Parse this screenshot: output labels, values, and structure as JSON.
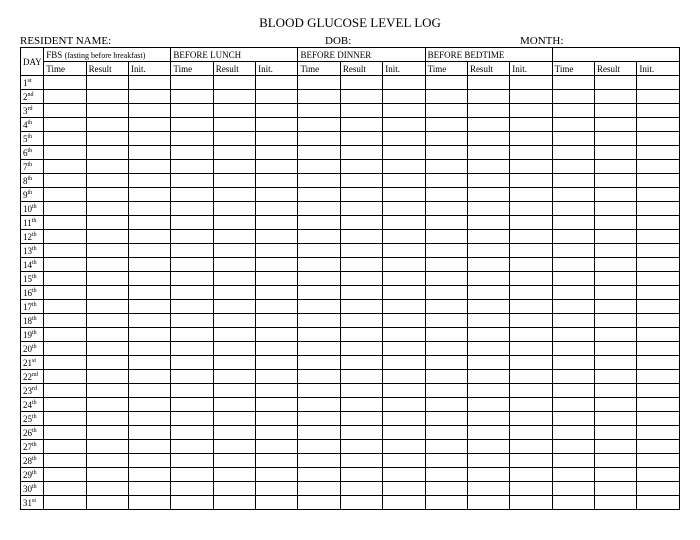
{
  "title": "BLOOD GLUCOSE LEVEL LOG",
  "labels": {
    "resident": "RESIDENT NAME:",
    "dob": "DOB:",
    "month": "MONTH:"
  },
  "header": {
    "day": "DAY",
    "groups": [
      {
        "label": "FBS",
        "note": "(fasting before breakfast)"
      },
      {
        "label": "BEFORE LUNCH",
        "note": ""
      },
      {
        "label": "BEFORE DINNER",
        "note": ""
      },
      {
        "label": "BEFORE BEDTIME",
        "note": ""
      },
      {
        "label": "",
        "note": ""
      }
    ],
    "subs": [
      "Time",
      "Result",
      "Init."
    ]
  },
  "days": [
    {
      "n": "1",
      "suf": "st"
    },
    {
      "n": "2",
      "suf": "nd"
    },
    {
      "n": "3",
      "suf": "rd"
    },
    {
      "n": "4",
      "suf": "th"
    },
    {
      "n": "5",
      "suf": "th"
    },
    {
      "n": "6",
      "suf": "th"
    },
    {
      "n": "7",
      "suf": "th"
    },
    {
      "n": "8",
      "suf": "th"
    },
    {
      "n": "9",
      "suf": "th"
    },
    {
      "n": "10",
      "suf": "th"
    },
    {
      "n": "11",
      "suf": "th"
    },
    {
      "n": "12",
      "suf": "th"
    },
    {
      "n": "13",
      "suf": "th"
    },
    {
      "n": "14",
      "suf": "th"
    },
    {
      "n": "15",
      "suf": "th"
    },
    {
      "n": "16",
      "suf": "th"
    },
    {
      "n": "17",
      "suf": "th"
    },
    {
      "n": "18",
      "suf": "th"
    },
    {
      "n": "19",
      "suf": "th"
    },
    {
      "n": "20",
      "suf": "th"
    },
    {
      "n": "21",
      "suf": "st"
    },
    {
      "n": "22",
      "suf": "nd"
    },
    {
      "n": "23",
      "suf": "rd"
    },
    {
      "n": "24",
      "suf": "th"
    },
    {
      "n": "25",
      "suf": "th"
    },
    {
      "n": "26",
      "suf": "th"
    },
    {
      "n": "27",
      "suf": "th"
    },
    {
      "n": "28",
      "suf": "th"
    },
    {
      "n": "29",
      "suf": "th"
    },
    {
      "n": "30",
      "suf": "th"
    },
    {
      "n": "31",
      "suf": "st"
    }
  ],
  "style": {
    "border_color": "#000000",
    "background": "#ffffff",
    "font_family": "Times New Roman",
    "title_fontsize": 13,
    "cell_fontsize": 9
  }
}
